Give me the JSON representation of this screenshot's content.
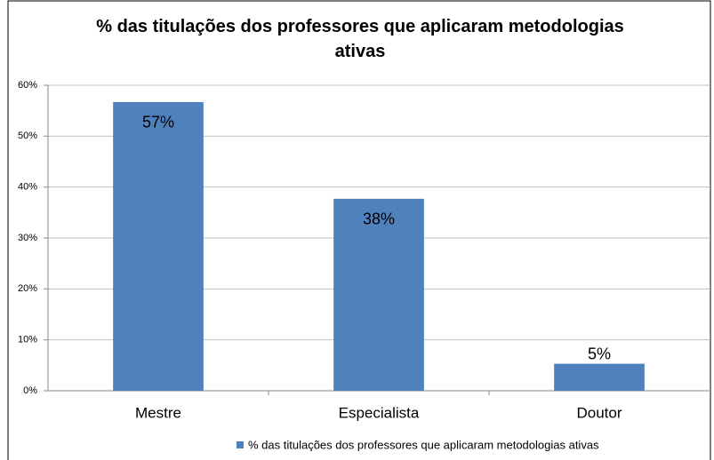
{
  "chart_data": {
    "type": "bar",
    "title": "% das titulações dos professores que aplicaram metodologias ativas",
    "categories": [
      "Mestre",
      "Especialista",
      "Doutor"
    ],
    "series": [
      {
        "name": "% das titulações dos professores que aplicaram metodologias ativas",
        "color": "#4f81bd",
        "values": [
          56.7,
          37.7,
          5.3
        ],
        "value_labels": [
          "57%",
          "38%",
          "5%"
        ]
      }
    ],
    "ylim": [
      0,
      60
    ],
    "yticks": [
      {
        "value": 0,
        "label": "0%"
      },
      {
        "value": 10,
        "label": "10%"
      },
      {
        "value": 20,
        "label": "20%"
      },
      {
        "value": 30,
        "label": "30%"
      },
      {
        "value": 40,
        "label": "40%"
      },
      {
        "value": 50,
        "label": "50%"
      },
      {
        "value": 60,
        "label": "60%"
      }
    ],
    "grid": true,
    "legend": "bottom"
  }
}
